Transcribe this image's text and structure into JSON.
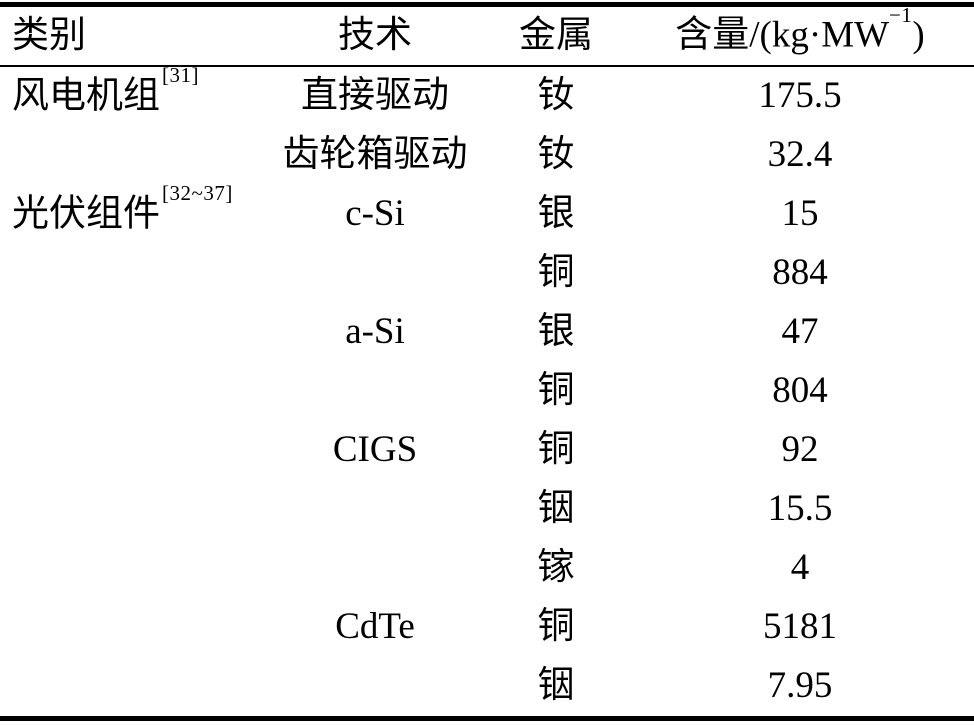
{
  "table": {
    "header": {
      "category": "类别",
      "technology": "技术",
      "metal": "金属",
      "content_prefix": "含量/(kg·MW",
      "content_sup": "−1",
      "content_suffix": ")"
    },
    "rows": [
      {
        "category": "风电机组",
        "category_ref": "[31]",
        "tech": "直接驱动",
        "metal": "钕",
        "value": "175.5"
      },
      {
        "category": "",
        "category_ref": "",
        "tech": "齿轮箱驱动",
        "metal": "钕",
        "value": "32.4"
      },
      {
        "category": "光伏组件",
        "category_ref": "[32~37]",
        "tech": "c-Si",
        "metal": "银",
        "value": "15"
      },
      {
        "category": "",
        "category_ref": "",
        "tech": "",
        "metal": "铜",
        "value": "884"
      },
      {
        "category": "",
        "category_ref": "",
        "tech": "a-Si",
        "metal": "银",
        "value": "47"
      },
      {
        "category": "",
        "category_ref": "",
        "tech": "",
        "metal": "铜",
        "value": "804"
      },
      {
        "category": "",
        "category_ref": "",
        "tech": "CIGS",
        "metal": "铜",
        "value": "92"
      },
      {
        "category": "",
        "category_ref": "",
        "tech": "",
        "metal": "铟",
        "value": "15.5"
      },
      {
        "category": "",
        "category_ref": "",
        "tech": "",
        "metal": "镓",
        "value": "4"
      },
      {
        "category": "",
        "category_ref": "",
        "tech": "CdTe",
        "metal": "铜",
        "value": "5181"
      },
      {
        "category": "",
        "category_ref": "",
        "tech": "",
        "metal": "铟",
        "value": "7.95"
      }
    ]
  }
}
